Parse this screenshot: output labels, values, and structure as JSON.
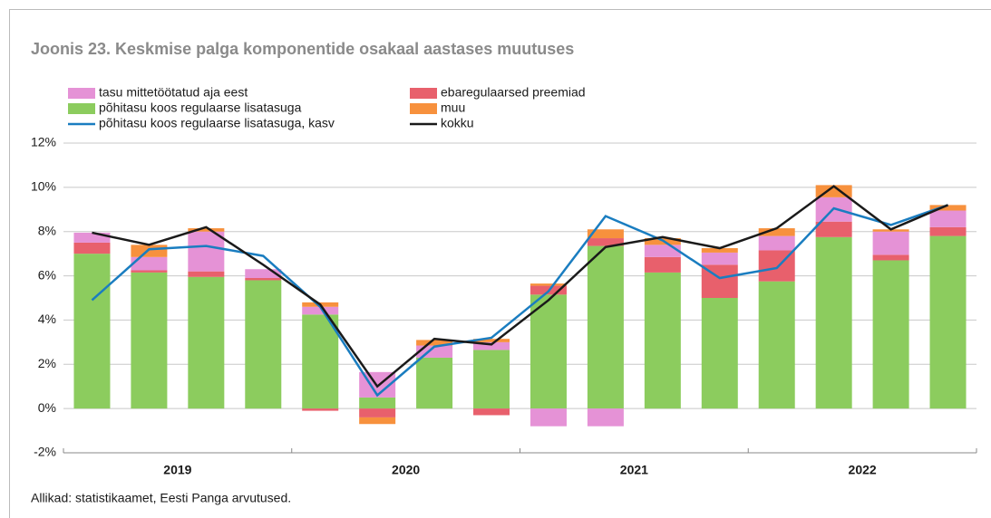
{
  "chart_data": {
    "type": "stacked_bar_line",
    "title": "Joonis 23. Keskmise palga komponentide osakaal aastases muutuses",
    "source": "Allikad: statistikaamet, Eesti Panga arvutused.",
    "categories": [
      null,
      null,
      null,
      null,
      null,
      null,
      null,
      null,
      null,
      null,
      null,
      null,
      null,
      null,
      null,
      null
    ],
    "year_labels": [
      "2019",
      "2020",
      "2021",
      "2022"
    ],
    "series": [
      {
        "name": "põhitasu koos regulaarse lisatasuga",
        "kind": "bar",
        "color": "#8ccc5e",
        "values": [
          7.0,
          6.15,
          5.95,
          5.8,
          4.25,
          0.5,
          2.3,
          2.65,
          5.15,
          7.35,
          6.15,
          5.0,
          5.75,
          7.75,
          6.7,
          7.8
        ]
      },
      {
        "name": "ebaregulaarsed preemiad",
        "kind": "bar",
        "color": "#e8606c",
        "values": [
          0.5,
          0.1,
          0.25,
          0.1,
          -0.1,
          -0.4,
          0,
          -0.3,
          0.4,
          0.35,
          0.7,
          1.5,
          1.4,
          0.7,
          0.25,
          0.4
        ]
      },
      {
        "name": "tasu mittetöötatud aja eest",
        "kind": "bar",
        "color": "#e592d6",
        "values": [
          0.45,
          0.6,
          1.8,
          0.4,
          0.35,
          1.15,
          0.55,
          0.35,
          -0.8,
          -0.8,
          0.55,
          0.55,
          0.65,
          1.1,
          1.05,
          0.75
        ]
      },
      {
        "name": "muu",
        "kind": "bar",
        "color": "#f7913d",
        "values": [
          0,
          0.55,
          0.15,
          0,
          0.2,
          -0.3,
          0.25,
          0.15,
          0.1,
          0.4,
          0.3,
          0.2,
          0.35,
          0.55,
          0.1,
          0.25
        ]
      },
      {
        "name": "põhitasu koos regulaarse lisatasuga, kasv",
        "kind": "line",
        "color": "#1a7dc0",
        "values": [
          4.9,
          7.2,
          7.35,
          6.9,
          4.6,
          0.6,
          2.8,
          3.2,
          5.3,
          8.7,
          7.6,
          5.9,
          6.35,
          9.05,
          8.3,
          9.2
        ]
      },
      {
        "name": "kokku",
        "kind": "line",
        "color": "#1a1a1a",
        "values": [
          7.95,
          7.4,
          8.2,
          6.5,
          4.7,
          1.0,
          3.15,
          2.9,
          4.9,
          7.3,
          7.75,
          7.25,
          8.15,
          10.05,
          8.1,
          9.2
        ]
      }
    ],
    "legend_order": [
      2,
      1,
      0,
      3,
      4,
      5
    ],
    "ylim": [
      -2,
      12
    ],
    "yticks": [
      {
        "value": -2,
        "label": "-2%"
      },
      {
        "value": 0,
        "label": "0%"
      },
      {
        "value": 2,
        "label": "2%"
      },
      {
        "value": 4,
        "label": "4%"
      },
      {
        "value": 6,
        "label": "6%"
      },
      {
        "value": 8,
        "label": "8%"
      },
      {
        "value": 10,
        "label": "10%"
      },
      {
        "value": 12,
        "label": "12%"
      }
    ],
    "grid": true
  }
}
